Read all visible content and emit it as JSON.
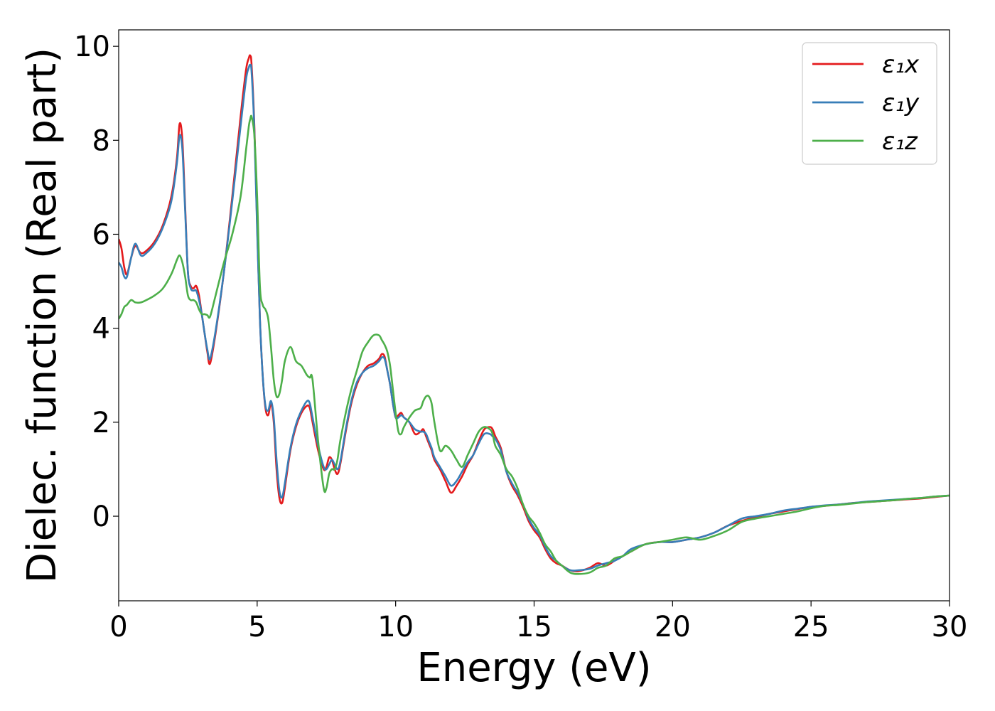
{
  "chart_data": {
    "type": "line",
    "xlabel": "Energy (eV)",
    "ylabel": "Dielec. function (Real part)",
    "xlim": [
      0,
      30
    ],
    "ylim": [
      -1.8,
      10.35
    ],
    "xticks": [
      0,
      5,
      10,
      15,
      20,
      25,
      30
    ],
    "yticks": [
      0,
      2,
      4,
      6,
      8,
      10
    ],
    "grid": false,
    "legend_position": "top-right",
    "series": [
      {
        "name": "ε₁x",
        "color": "#e41a1c",
        "x": [
          0,
          0.1,
          0.2,
          0.3,
          0.45,
          0.6,
          0.8,
          1.0,
          1.3,
          1.6,
          1.9,
          2.1,
          2.2,
          2.3,
          2.4,
          2.5,
          2.6,
          2.7,
          2.8,
          2.9,
          3.0,
          3.1,
          3.2,
          3.3,
          3.5,
          3.8,
          4.1,
          4.4,
          4.6,
          4.7,
          4.75,
          4.8,
          4.9,
          5.0,
          5.1,
          5.2,
          5.3,
          5.4,
          5.5,
          5.6,
          5.7,
          5.8,
          5.9,
          6.0,
          6.2,
          6.4,
          6.6,
          6.8,
          6.9,
          7.0,
          7.2,
          7.4,
          7.5,
          7.6,
          7.7,
          7.8,
          7.9,
          8.0,
          8.2,
          8.4,
          8.6,
          8.8,
          9.0,
          9.2,
          9.4,
          9.5,
          9.6,
          9.7,
          9.8,
          9.9,
          10.0,
          10.1,
          10.2,
          10.3,
          10.5,
          10.7,
          10.9,
          11.0,
          11.1,
          11.2,
          11.3,
          11.4,
          11.6,
          11.8,
          12.0,
          12.2,
          12.4,
          12.6,
          12.8,
          13.0,
          13.2,
          13.4,
          13.5,
          13.6,
          13.8,
          14.0,
          14.2,
          14.4,
          14.6,
          14.8,
          15.0,
          15.2,
          15.4,
          15.6,
          15.8,
          16.0,
          16.3,
          16.6,
          17.0,
          17.3,
          17.6,
          17.9,
          18.2,
          18.5,
          19.0,
          19.5,
          20.0,
          20.5,
          21.0,
          21.5,
          22.0,
          22.5,
          23.0,
          23.5,
          24.0,
          24.5,
          25.0,
          25.5,
          26.0,
          26.5,
          27.0,
          27.5,
          28.0,
          28.5,
          29.0,
          29.5,
          30.0
        ],
        "values": [
          5.9,
          5.7,
          5.3,
          5.15,
          5.5,
          5.75,
          5.6,
          5.65,
          5.85,
          6.2,
          6.8,
          7.6,
          8.35,
          8.0,
          6.6,
          5.2,
          4.9,
          4.85,
          4.9,
          4.7,
          4.3,
          3.9,
          3.5,
          3.25,
          3.9,
          5.2,
          6.8,
          8.5,
          9.5,
          9.75,
          9.8,
          9.6,
          8.3,
          6.2,
          4.2,
          3.0,
          2.3,
          2.15,
          2.4,
          2.0,
          1.0,
          0.4,
          0.28,
          0.6,
          1.4,
          1.9,
          2.2,
          2.35,
          2.3,
          2.0,
          1.4,
          1.0,
          1.05,
          1.25,
          1.2,
          1.0,
          0.9,
          1.1,
          1.8,
          2.4,
          2.8,
          3.05,
          3.2,
          3.25,
          3.35,
          3.45,
          3.4,
          3.1,
          2.8,
          2.4,
          2.1,
          2.15,
          2.2,
          2.1,
          2.0,
          1.75,
          1.8,
          1.85,
          1.7,
          1.55,
          1.4,
          1.2,
          1.0,
          0.75,
          0.5,
          0.65,
          0.85,
          1.1,
          1.3,
          1.6,
          1.85,
          1.9,
          1.85,
          1.7,
          1.45,
          0.95,
          0.65,
          0.45,
          0.2,
          -0.1,
          -0.3,
          -0.45,
          -0.7,
          -0.9,
          -1.0,
          -1.05,
          -1.15,
          -1.17,
          -1.1,
          -1.0,
          -1.05,
          -0.95,
          -0.85,
          -0.75,
          -0.6,
          -0.55,
          -0.55,
          -0.5,
          -0.45,
          -0.35,
          -0.2,
          -0.1,
          -0.02,
          0.05,
          0.1,
          0.15,
          0.2,
          0.22,
          0.25,
          0.28,
          0.3,
          0.32,
          0.34,
          0.36,
          0.38,
          0.41,
          0.44
        ]
      },
      {
        "name": "ε₁y",
        "color": "#377eb8",
        "x": [
          0,
          0.1,
          0.2,
          0.3,
          0.45,
          0.6,
          0.8,
          1.0,
          1.3,
          1.6,
          1.9,
          2.1,
          2.2,
          2.3,
          2.4,
          2.5,
          2.6,
          2.7,
          2.8,
          2.9,
          3.0,
          3.1,
          3.2,
          3.3,
          3.5,
          3.8,
          4.1,
          4.4,
          4.6,
          4.7,
          4.75,
          4.8,
          4.9,
          5.0,
          5.1,
          5.2,
          5.3,
          5.4,
          5.5,
          5.6,
          5.7,
          5.8,
          5.9,
          6.0,
          6.2,
          6.4,
          6.6,
          6.8,
          6.9,
          7.0,
          7.2,
          7.4,
          7.5,
          7.6,
          7.7,
          7.8,
          7.9,
          8.0,
          8.2,
          8.4,
          8.6,
          8.8,
          9.0,
          9.2,
          9.4,
          9.5,
          9.6,
          9.7,
          9.8,
          9.9,
          10.0,
          10.1,
          10.2,
          10.3,
          10.5,
          10.7,
          10.9,
          11.0,
          11.1,
          11.2,
          11.3,
          11.4,
          11.6,
          11.8,
          12.0,
          12.2,
          12.4,
          12.6,
          12.8,
          13.0,
          13.2,
          13.4,
          13.5,
          13.6,
          13.8,
          14.0,
          14.2,
          14.4,
          14.6,
          14.8,
          15.0,
          15.2,
          15.4,
          15.6,
          15.8,
          16.0,
          16.3,
          16.6,
          17.0,
          17.3,
          17.6,
          17.9,
          18.2,
          18.5,
          19.0,
          19.5,
          20.0,
          20.5,
          21.0,
          21.5,
          22.0,
          22.5,
          23.0,
          23.5,
          24.0,
          24.5,
          25.0,
          25.5,
          26.0,
          26.5,
          27.0,
          27.5,
          28.0,
          28.5,
          29.0,
          29.5,
          30.0
        ],
        "values": [
          5.4,
          5.3,
          5.1,
          5.1,
          5.5,
          5.8,
          5.55,
          5.6,
          5.8,
          6.15,
          6.7,
          7.5,
          8.1,
          7.8,
          6.5,
          5.2,
          4.85,
          4.8,
          4.8,
          4.6,
          4.3,
          3.9,
          3.55,
          3.35,
          3.95,
          5.2,
          6.7,
          8.3,
          9.3,
          9.55,
          9.6,
          9.45,
          8.2,
          6.1,
          4.2,
          3.0,
          2.35,
          2.25,
          2.45,
          2.1,
          1.2,
          0.55,
          0.4,
          0.7,
          1.45,
          1.95,
          2.25,
          2.45,
          2.4,
          2.1,
          1.5,
          1.05,
          1.0,
          1.1,
          1.2,
          1.1,
          1.0,
          1.15,
          1.85,
          2.45,
          2.85,
          3.05,
          3.15,
          3.2,
          3.3,
          3.38,
          3.35,
          3.1,
          2.8,
          2.4,
          2.1,
          2.1,
          2.15,
          2.1,
          2.0,
          1.85,
          1.8,
          1.8,
          1.75,
          1.6,
          1.45,
          1.25,
          1.05,
          0.85,
          0.65,
          0.75,
          0.95,
          1.15,
          1.3,
          1.55,
          1.75,
          1.75,
          1.7,
          1.65,
          1.4,
          0.95,
          0.7,
          0.5,
          0.25,
          -0.05,
          -0.25,
          -0.4,
          -0.65,
          -0.85,
          -0.95,
          -1.05,
          -1.15,
          -1.15,
          -1.12,
          -1.05,
          -1.0,
          -0.95,
          -0.85,
          -0.7,
          -0.6,
          -0.55,
          -0.55,
          -0.5,
          -0.45,
          -0.35,
          -0.2,
          -0.05,
          0.0,
          0.05,
          0.12,
          0.16,
          0.2,
          0.23,
          0.25,
          0.28,
          0.31,
          0.33,
          0.35,
          0.37,
          0.39,
          0.42,
          0.44
        ]
      },
      {
        "name": "ε₁z",
        "color": "#4daf4a",
        "x": [
          0,
          0.1,
          0.2,
          0.3,
          0.45,
          0.6,
          0.8,
          1.0,
          1.3,
          1.6,
          1.9,
          2.1,
          2.2,
          2.3,
          2.4,
          2.5,
          2.6,
          2.7,
          2.8,
          2.9,
          3.0,
          3.1,
          3.2,
          3.3,
          3.5,
          3.8,
          4.1,
          4.4,
          4.6,
          4.7,
          4.75,
          4.8,
          4.9,
          5.0,
          5.1,
          5.2,
          5.3,
          5.4,
          5.5,
          5.6,
          5.7,
          5.8,
          5.9,
          6.0,
          6.2,
          6.4,
          6.6,
          6.8,
          6.9,
          7.0,
          7.2,
          7.4,
          7.5,
          7.6,
          7.7,
          7.8,
          7.9,
          8.0,
          8.2,
          8.4,
          8.6,
          8.8,
          9.0,
          9.2,
          9.4,
          9.5,
          9.6,
          9.7,
          9.8,
          9.9,
          10.0,
          10.1,
          10.2,
          10.3,
          10.5,
          10.7,
          10.9,
          11.0,
          11.1,
          11.2,
          11.3,
          11.4,
          11.6,
          11.8,
          12.0,
          12.2,
          12.4,
          12.6,
          12.8,
          13.0,
          13.2,
          13.4,
          13.5,
          13.6,
          13.8,
          14.0,
          14.2,
          14.4,
          14.6,
          14.8,
          15.0,
          15.2,
          15.4,
          15.6,
          15.8,
          16.0,
          16.3,
          16.6,
          17.0,
          17.3,
          17.6,
          17.9,
          18.2,
          18.5,
          19.0,
          19.5,
          20.0,
          20.5,
          21.0,
          21.5,
          22.0,
          22.5,
          23.0,
          23.5,
          24.0,
          24.5,
          25.0,
          25.5,
          26.0,
          26.5,
          27.0,
          27.5,
          28.0,
          28.5,
          29.0,
          29.5,
          30.0
        ],
        "values": [
          4.2,
          4.3,
          4.45,
          4.5,
          4.6,
          4.55,
          4.55,
          4.6,
          4.7,
          4.85,
          5.15,
          5.45,
          5.55,
          5.4,
          5.1,
          4.7,
          4.6,
          4.6,
          4.55,
          4.4,
          4.3,
          4.3,
          4.28,
          4.25,
          4.7,
          5.4,
          6.0,
          6.8,
          7.8,
          8.3,
          8.45,
          8.5,
          8.1,
          6.8,
          4.9,
          4.5,
          4.4,
          4.2,
          3.6,
          2.9,
          2.55,
          2.6,
          2.9,
          3.3,
          3.6,
          3.3,
          3.2,
          3.0,
          2.95,
          2.9,
          1.6,
          0.6,
          0.6,
          0.9,
          1.0,
          1.0,
          1.2,
          1.6,
          2.2,
          2.7,
          3.1,
          3.5,
          3.7,
          3.85,
          3.85,
          3.75,
          3.65,
          3.5,
          3.2,
          2.7,
          2.2,
          1.8,
          1.75,
          1.9,
          2.1,
          2.25,
          2.3,
          2.45,
          2.55,
          2.55,
          2.4,
          2.0,
          1.4,
          1.5,
          1.4,
          1.2,
          1.05,
          1.3,
          1.55,
          1.8,
          1.9,
          1.85,
          1.75,
          1.5,
          1.3,
          1.0,
          0.85,
          0.6,
          0.25,
          0.0,
          -0.15,
          -0.35,
          -0.6,
          -0.75,
          -0.95,
          -1.05,
          -1.2,
          -1.23,
          -1.2,
          -1.1,
          -1.05,
          -0.9,
          -0.85,
          -0.75,
          -0.6,
          -0.55,
          -0.5,
          -0.45,
          -0.5,
          -0.42,
          -0.3,
          -0.12,
          -0.05,
          0.0,
          0.05,
          0.1,
          0.17,
          0.22,
          0.24,
          0.27,
          0.3,
          0.32,
          0.34,
          0.37,
          0.39,
          0.42,
          0.44
        ]
      }
    ]
  }
}
